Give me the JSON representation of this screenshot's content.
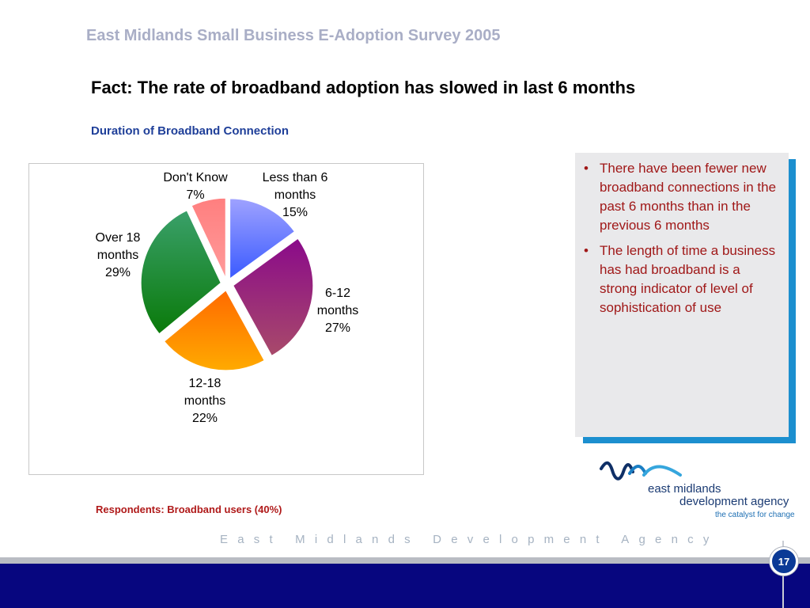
{
  "header": {
    "survey_title": "East Midlands Small Business E-Adoption Survey 2005",
    "slide_heading": "Fact: The rate of broadband adoption has slowed in last 6 months"
  },
  "chart_caption": "Duration of Broadband Connection",
  "chart_data": {
    "type": "pie",
    "title": "Duration of Broadband Connection",
    "unit": "%",
    "slices": [
      {
        "label": [
          "Less than 6",
          "months",
          "15%"
        ],
        "category": "Less than 6 months",
        "value": 15,
        "color_top": "#9fa2ff",
        "color_bottom": "#3a5aff"
      },
      {
        "label": [
          "6-12",
          "months",
          "27%"
        ],
        "category": "6-12 months",
        "value": 27,
        "color_top": "#8a0a8a",
        "color_bottom": "#a84a6a"
      },
      {
        "label": [
          "12-18",
          "months",
          "22%"
        ],
        "category": "12-18 months",
        "value": 22,
        "color_top": "#ff6a00",
        "color_bottom": "#ffaa00"
      },
      {
        "label": [
          "Over 18",
          "months",
          "29%"
        ],
        "category": "Over 18 months",
        "value": 29,
        "color_top": "#3aa06a",
        "color_bottom": "#0a7a0a"
      },
      {
        "label": [
          "Don't Know",
          "7%"
        ],
        "category": "Don't Know",
        "value": 7,
        "color_top": "#ff7f7f",
        "color_bottom": "#ff9a9a"
      }
    ]
  },
  "notes": {
    "bullets": [
      "There have been fewer new broadband connections in the past 6 months than in the previous 6 months",
      "The length of time a business has had broadband is a strong indicator of level of sophistication of use"
    ]
  },
  "respondents": "Respondents: Broadband users (40%)",
  "logo": {
    "line1": "east midlands",
    "line2": "development agency",
    "tagline": "the catalyst for change"
  },
  "footer": {
    "agency_text": "East Midlands Development Agency",
    "page_number": "17"
  },
  "colors": {
    "brand_navy": "#07067f",
    "accent_blue": "#1c8fcf",
    "note_text": "#a01818"
  }
}
